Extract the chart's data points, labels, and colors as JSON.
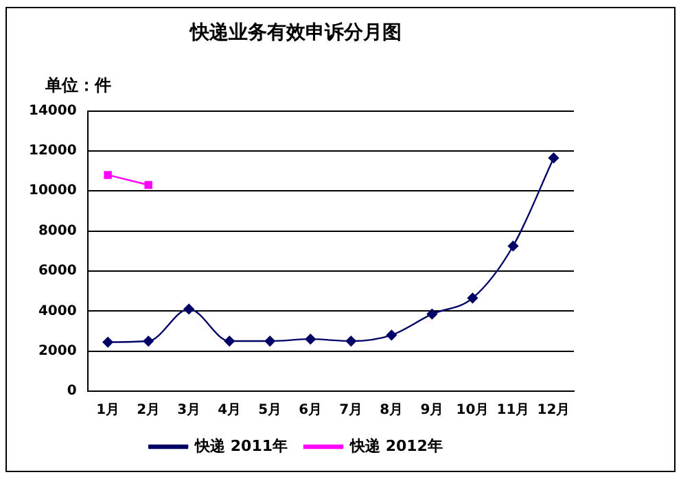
{
  "chart_data": {
    "type": "line",
    "title": "快递业务有效申诉分月图",
    "annotations": [
      "单位：件"
    ],
    "categories": [
      "1月",
      "2月",
      "3月",
      "4月",
      "5月",
      "6月",
      "7月",
      "8月",
      "9月",
      "10月",
      "11月",
      "12月"
    ],
    "series": [
      {
        "name": "快递 2011年",
        "color": "#000066",
        "marker": "diamond",
        "values": [
          2450,
          2500,
          4100,
          2500,
          2500,
          2600,
          2500,
          2800,
          3850,
          4650,
          7250,
          11650
        ]
      },
      {
        "name": "快递 2012年",
        "color": "#ff00ff",
        "marker": "square",
        "values": [
          10800,
          10300,
          null,
          null,
          null,
          null,
          null,
          null,
          null,
          null,
          null,
          null
        ]
      }
    ],
    "ylim": [
      0,
      14000
    ],
    "yticks": [
      0,
      2000,
      4000,
      6000,
      8000,
      10000,
      12000,
      14000
    ],
    "grid": "y",
    "legend": "bottom"
  }
}
